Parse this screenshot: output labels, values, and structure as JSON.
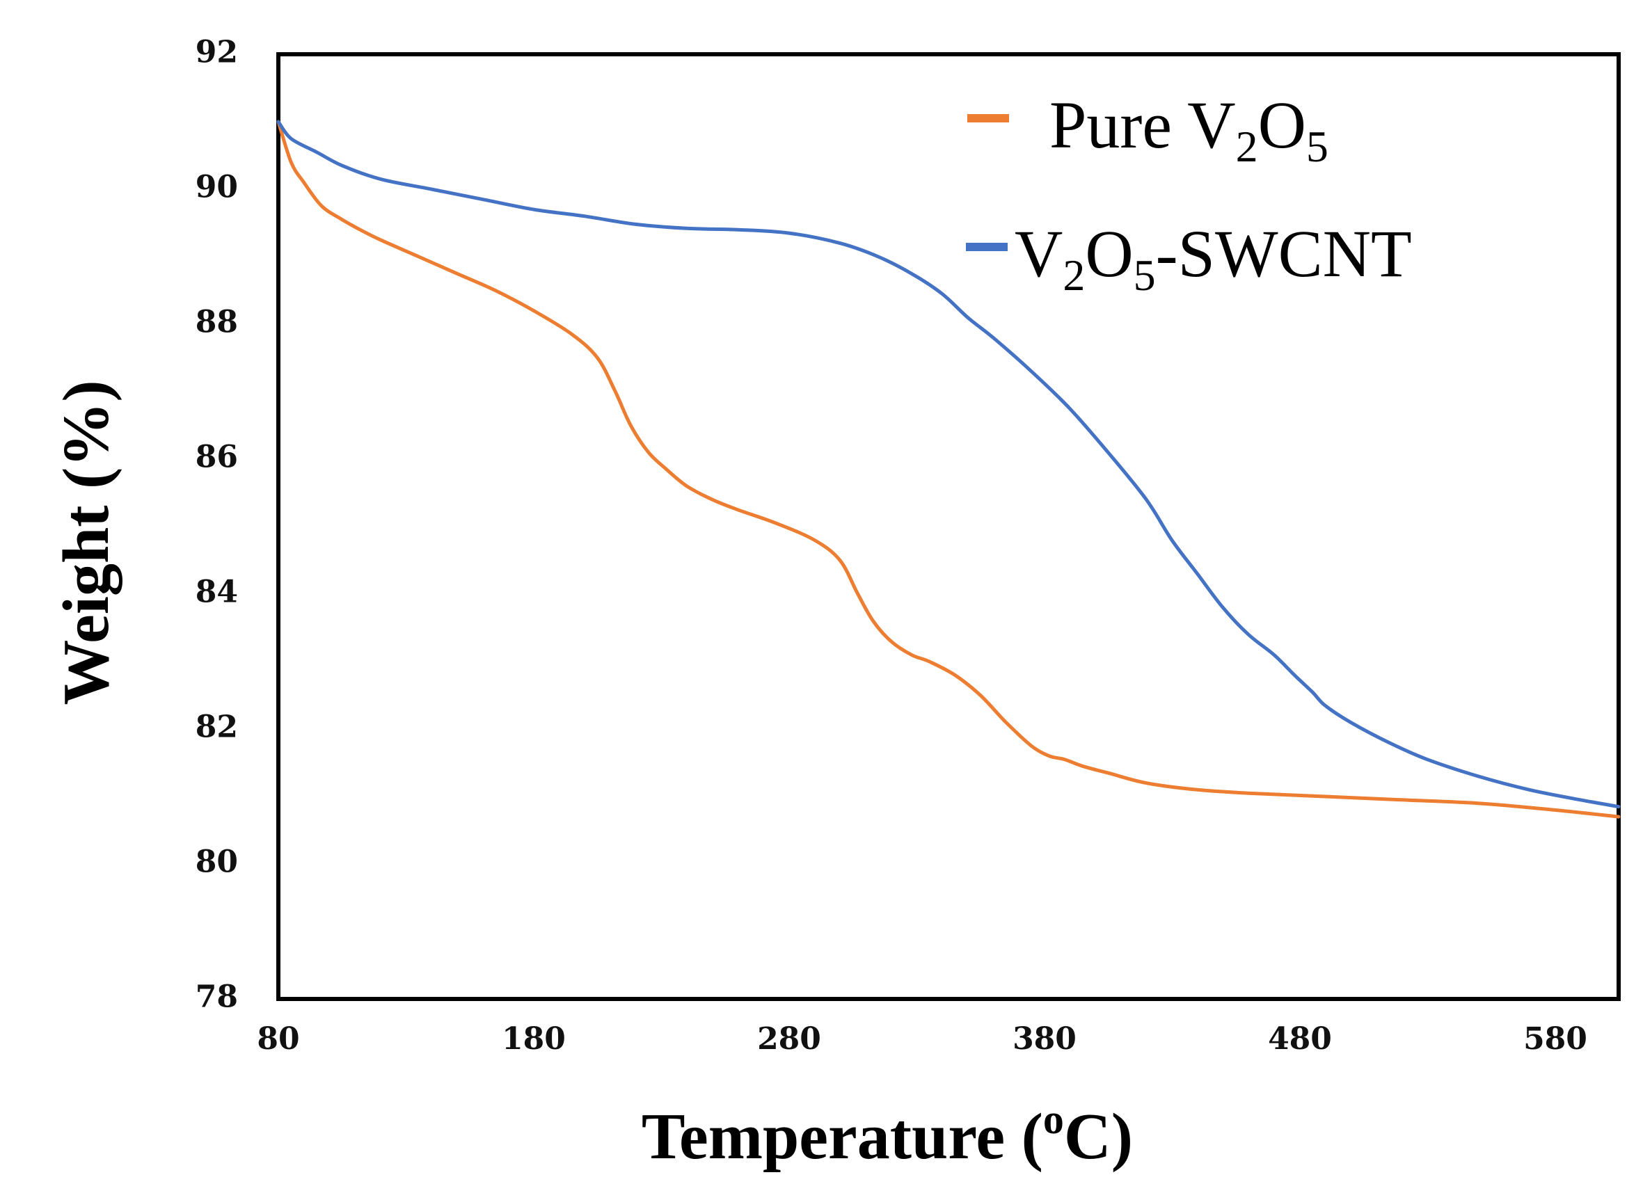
{
  "chart_data": {
    "type": "line",
    "title": "",
    "xlabel": "Temperature (",
    "xlabel_sup": "o",
    "xlabel_end": "C)",
    "ylabel": "Weight (%)",
    "xlim": [
      80,
      605
    ],
    "ylim": [
      78,
      92
    ],
    "xticks": [
      "80",
      "180",
      "280",
      "380",
      "480",
      "580"
    ],
    "yticks": [
      "78",
      "80",
      "82",
      "84",
      "86",
      "88",
      "90",
      "92"
    ],
    "grid": false,
    "legend_position": "top-right",
    "series": [
      {
        "name": "Pure V2O5",
        "legend_parts": {
          "pre": "Pure V",
          "sub1": "2",
          "mid": "O",
          "sub2": "5",
          "post": ""
        },
        "color": "#ED7D31",
        "x": [
          80,
          85,
          90,
          97,
          105,
          112,
          120,
          135,
          150,
          165,
          180,
          195,
          205,
          212,
          218,
          225,
          232,
          240,
          250,
          260,
          275,
          290,
          300,
          307,
          313,
          320,
          328,
          335,
          345,
          355,
          365,
          375,
          382,
          388,
          395,
          405,
          420,
          440,
          460,
          490,
          520,
          550,
          580,
          605
        ],
        "y": [
          91.0,
          90.4,
          90.1,
          89.75,
          89.55,
          89.4,
          89.25,
          89.0,
          88.75,
          88.5,
          88.2,
          87.85,
          87.5,
          87.0,
          86.5,
          86.1,
          85.85,
          85.6,
          85.4,
          85.25,
          85.05,
          84.8,
          84.5,
          84.0,
          83.6,
          83.3,
          83.1,
          83.0,
          82.8,
          82.5,
          82.1,
          81.75,
          81.6,
          81.55,
          81.45,
          81.35,
          81.2,
          81.1,
          81.05,
          81.0,
          80.95,
          80.9,
          80.8,
          80.7
        ]
      },
      {
        "name": "V2O5-SWCNT",
        "legend_parts": {
          "pre": "V",
          "sub1": "2",
          "mid": "O",
          "sub2": "5",
          "post": "-SWCNT"
        },
        "color": "#4472C4",
        "x": [
          80,
          85,
          95,
          105,
          120,
          140,
          160,
          180,
          200,
          220,
          240,
          260,
          280,
          300,
          315,
          328,
          340,
          350,
          360,
          375,
          390,
          405,
          420,
          430,
          440,
          450,
          460,
          470,
          478,
          485,
          490,
          500,
          515,
          530,
          550,
          570,
          590,
          605
        ],
        "y": [
          91.0,
          90.75,
          90.55,
          90.35,
          90.15,
          90.0,
          89.85,
          89.7,
          89.6,
          89.48,
          89.42,
          89.4,
          89.35,
          89.2,
          89.0,
          88.75,
          88.45,
          88.1,
          87.8,
          87.3,
          86.75,
          86.1,
          85.4,
          84.8,
          84.3,
          83.8,
          83.4,
          83.1,
          82.8,
          82.55,
          82.35,
          82.1,
          81.8,
          81.55,
          81.3,
          81.1,
          80.95,
          80.85
        ]
      }
    ]
  }
}
